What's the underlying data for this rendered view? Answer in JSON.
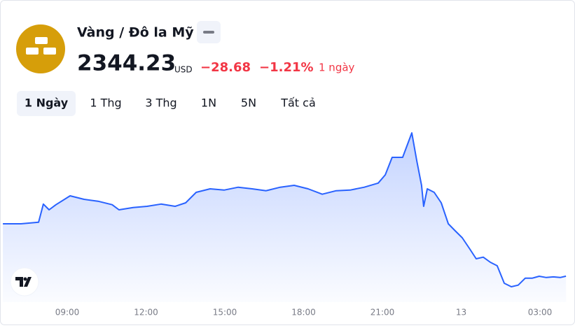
{
  "header": {
    "title": "Vàng / Đô la Mỹ",
    "price": "2344.23",
    "currency": "USD",
    "change": "−28.68",
    "change_percent": "−1.21%",
    "period": "1 ngày"
  },
  "tabs": [
    "1 Ngày",
    "1 Thg",
    "3 Thg",
    "1N",
    "5N",
    "Tất cả"
  ],
  "chart_data": {
    "type": "line",
    "color": "#2962ff",
    "x": [
      6.55,
      7.24,
      7.91,
      8.09,
      8.31,
      8.57,
      9.11,
      9.64,
      10.17,
      10.71,
      10.97,
      11.51,
      12.04,
      12.57,
      13.11,
      13.51,
      13.91,
      14.44,
      14.97,
      15.51,
      16.04,
      16.57,
      17.11,
      17.64,
      18.17,
      18.71,
      19.24,
      19.77,
      20.31,
      20.84,
      21.11,
      21.37,
      21.77,
      22.12,
      22.31,
      22.49,
      22.57,
      22.71,
      22.97,
      23.24,
      23.51,
      23.77,
      24.04,
      24.31,
      24.57,
      24.84,
      25.11,
      25.37,
      25.64,
      25.91,
      26.17,
      26.44,
      26.71,
      26.97,
      27.24,
      27.51,
      27.77,
      27.99
    ],
    "values": [
      2360.7,
      2360.7,
      2361.2,
      2366.9,
      2365.1,
      2366.7,
      2369.5,
      2368.4,
      2367.8,
      2366.7,
      2365.1,
      2365.8,
      2366.2,
      2366.9,
      2366.2,
      2367.3,
      2370.6,
      2371.7,
      2371.3,
      2372.2,
      2371.7,
      2371.1,
      2372.2,
      2372.8,
      2371.7,
      2370.0,
      2371.1,
      2371.3,
      2372.2,
      2373.5,
      2376.1,
      2381.6,
      2381.6,
      2389.3,
      2380.5,
      2372.8,
      2366.2,
      2371.7,
      2370.6,
      2367.3,
      2360.7,
      2358.5,
      2356.3,
      2353.0,
      2349.7,
      2350.2,
      2348.6,
      2347.5,
      2342.0,
      2340.9,
      2341.4,
      2343.6,
      2343.6,
      2344.2,
      2343.8,
      2344.0,
      2343.8,
      2344.23
    ],
    "xlim": [
      6.5,
      28.0
    ],
    "ylim": [
      2336.5,
      2391.5
    ],
    "xticks": [
      {
        "value": 9,
        "label": "09:00"
      },
      {
        "value": 12,
        "label": "12:00"
      },
      {
        "value": 15,
        "label": "15:00"
      },
      {
        "value": 18,
        "label": "18:00"
      },
      {
        "value": 21,
        "label": "21:00"
      },
      {
        "value": 24,
        "label": "13"
      },
      {
        "value": 27,
        "label": "03:00"
      }
    ]
  }
}
